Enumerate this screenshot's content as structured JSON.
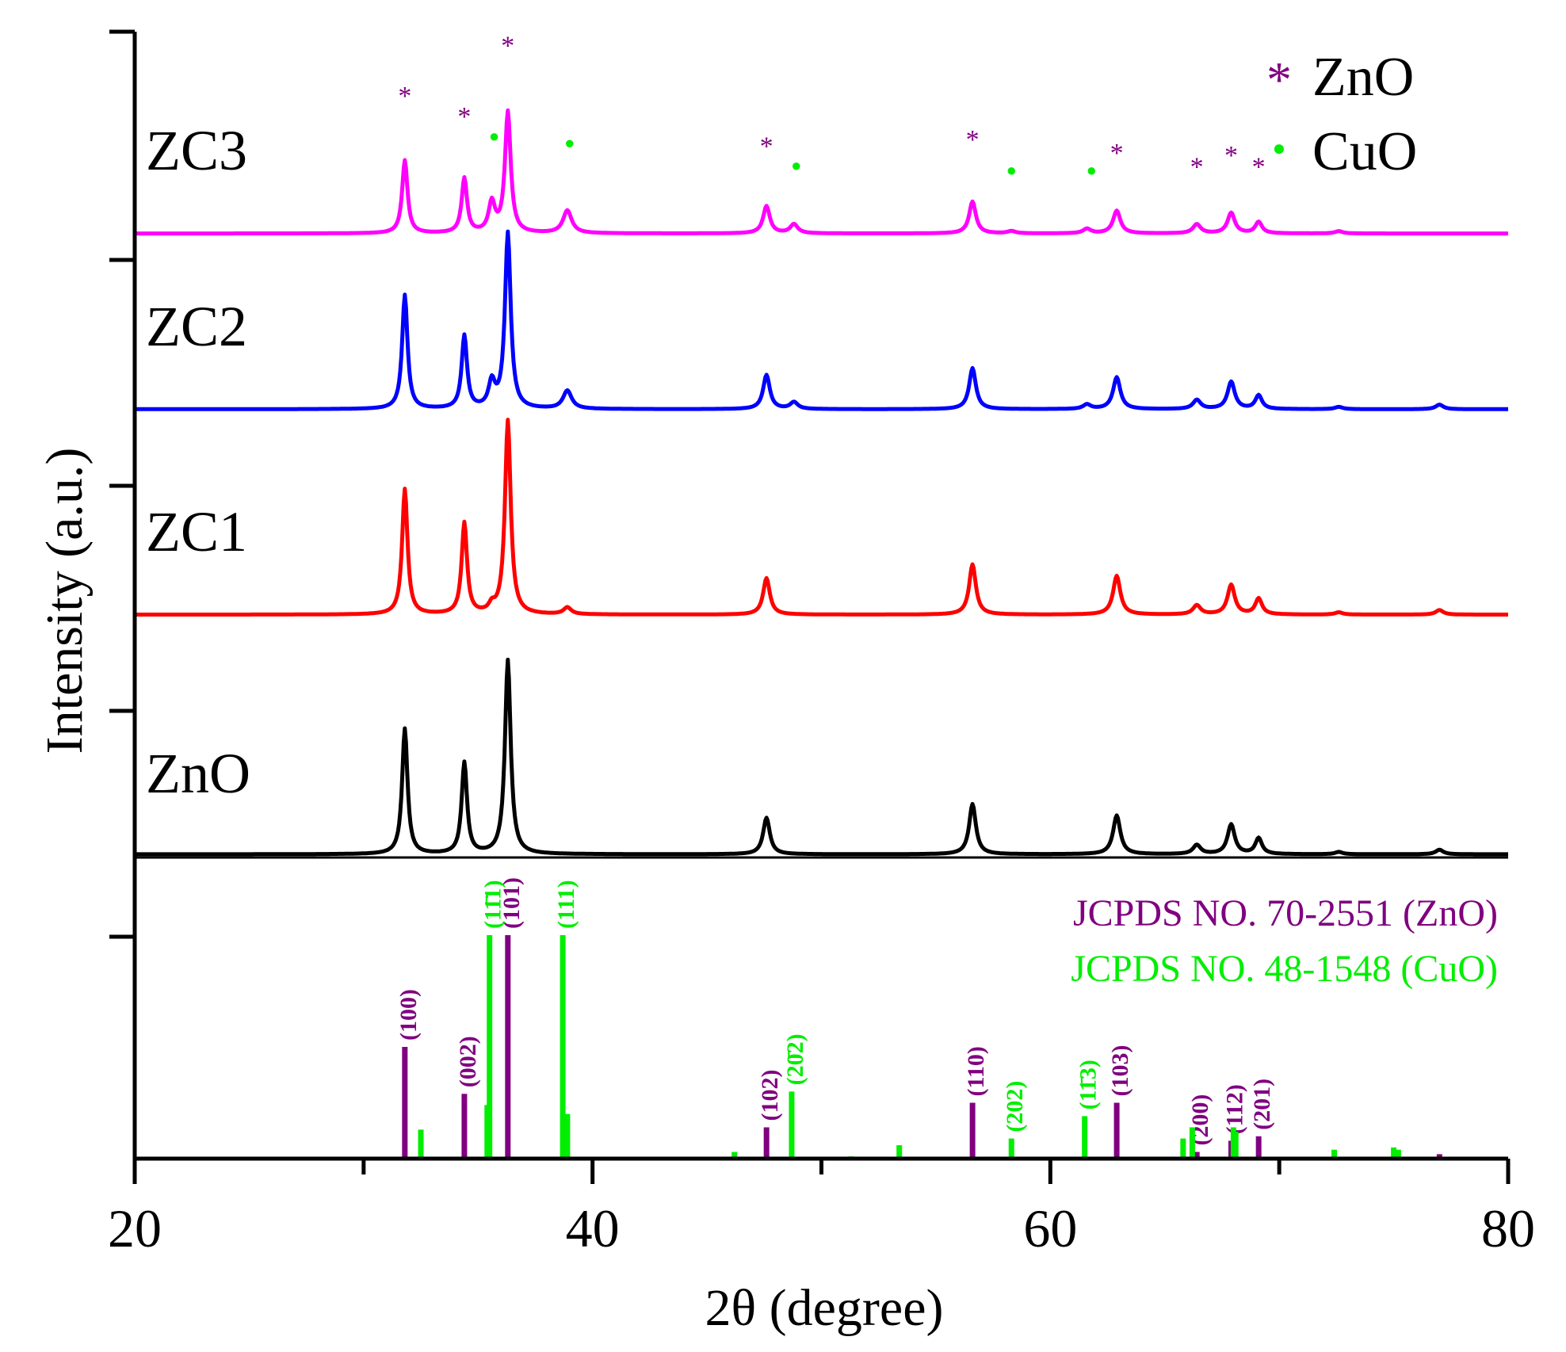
{
  "chart_data": {
    "type": "line",
    "title": "",
    "xlabel": "2θ (degree)",
    "ylabel": "Intensity (a.u.)",
    "xlim": [
      20,
      80
    ],
    "x_ticks": [
      "20",
      "40",
      "60",
      "80"
    ],
    "x_tick_values": [
      20,
      40,
      60,
      80
    ],
    "y_ticks_shown": false,
    "colors": {
      "ZnO_pattern": "#000000",
      "ZC1": "#ff0000",
      "ZC2": "#0000ff",
      "ZC3": "#ff00ff",
      "zno_marker": "#800080",
      "cuo_marker": "#00ee00"
    },
    "legend": {
      "position": "top-right",
      "entries": [
        {
          "symbol": "*",
          "label": "ZnO",
          "color": "#800080"
        },
        {
          "symbol": "●",
          "label": "CuO",
          "color": "#00ee00"
        }
      ]
    },
    "series": [
      {
        "name": "ZnO",
        "color": "#000000",
        "baseline": 0.0,
        "scale": 1.0,
        "peaks": [
          [
            31.8,
            0.55,
            0.28
          ],
          [
            34.4,
            0.4,
            0.28
          ],
          [
            36.3,
            0.85,
            0.3
          ],
          [
            47.6,
            0.16,
            0.35
          ],
          [
            56.6,
            0.22,
            0.35
          ],
          [
            62.9,
            0.17,
            0.38
          ],
          [
            66.4,
            0.04,
            0.4
          ],
          [
            67.9,
            0.13,
            0.38
          ],
          [
            69.1,
            0.07,
            0.35
          ],
          [
            72.6,
            0.01,
            0.4
          ],
          [
            77.0,
            0.02,
            0.4
          ]
        ]
      },
      {
        "name": "ZC1",
        "color": "#ff0000",
        "baseline": 1.05,
        "scale": 1.0,
        "peaks": [
          [
            31.8,
            0.55,
            0.28
          ],
          [
            34.4,
            0.4,
            0.28
          ],
          [
            35.6,
            0.03,
            0.3
          ],
          [
            36.3,
            0.85,
            0.3
          ],
          [
            38.9,
            0.03,
            0.4
          ],
          [
            47.6,
            0.16,
            0.35
          ],
          [
            56.6,
            0.22,
            0.35
          ],
          [
            62.9,
            0.17,
            0.38
          ],
          [
            66.4,
            0.04,
            0.4
          ],
          [
            67.9,
            0.13,
            0.38
          ],
          [
            69.1,
            0.07,
            0.35
          ],
          [
            72.6,
            0.01,
            0.4
          ],
          [
            77.0,
            0.02,
            0.4
          ]
        ]
      },
      {
        "name": "ZC2",
        "color": "#0000ff",
        "baseline": 1.95,
        "scale": 1.0,
        "peaks": [
          [
            31.8,
            0.5,
            0.28
          ],
          [
            34.4,
            0.32,
            0.28
          ],
          [
            35.6,
            0.11,
            0.33
          ],
          [
            36.3,
            0.77,
            0.3
          ],
          [
            38.9,
            0.08,
            0.45
          ],
          [
            47.6,
            0.15,
            0.35
          ],
          [
            48.8,
            0.03,
            0.4
          ],
          [
            56.6,
            0.18,
            0.35
          ],
          [
            61.6,
            0.02,
            0.4
          ],
          [
            62.9,
            0.14,
            0.38
          ],
          [
            66.4,
            0.04,
            0.4
          ],
          [
            67.9,
            0.12,
            0.38
          ],
          [
            69.1,
            0.06,
            0.35
          ],
          [
            72.6,
            0.01,
            0.4
          ],
          [
            77.0,
            0.02,
            0.4
          ]
        ]
      },
      {
        "name": "ZC3",
        "color": "#ff00ff",
        "baseline": 2.72,
        "scale": 1.0,
        "peaks": [
          [
            31.8,
            0.32,
            0.28
          ],
          [
            34.4,
            0.24,
            0.28
          ],
          [
            35.6,
            0.13,
            0.33
          ],
          [
            36.3,
            0.53,
            0.3
          ],
          [
            38.9,
            0.1,
            0.45
          ],
          [
            47.6,
            0.12,
            0.35
          ],
          [
            48.8,
            0.04,
            0.4
          ],
          [
            56.6,
            0.14,
            0.35
          ],
          [
            58.3,
            0.01,
            0.4
          ],
          [
            61.6,
            0.02,
            0.4
          ],
          [
            62.9,
            0.1,
            0.38
          ],
          [
            66.4,
            0.04,
            0.4
          ],
          [
            67.9,
            0.09,
            0.38
          ],
          [
            69.1,
            0.05,
            0.35
          ],
          [
            72.6,
            0.01,
            0.4
          ]
        ]
      }
    ],
    "curve_labels": [
      {
        "name": "ZC3",
        "label_y": 3.0
      },
      {
        "name": "ZC2",
        "label_y": 2.23
      },
      {
        "name": "ZC1",
        "label_y": 1.33
      },
      {
        "name": "ZnO",
        "label_y": 0.27
      }
    ],
    "peak_markers": [
      {
        "x": 31.8,
        "y": 3.34,
        "type": "zno",
        "symbol": "*"
      },
      {
        "x": 34.4,
        "y": 3.25,
        "type": "zno",
        "symbol": "*"
      },
      {
        "x": 35.7,
        "y": 3.15,
        "type": "cuo",
        "symbol": "●"
      },
      {
        "x": 36.3,
        "y": 3.56,
        "type": "zno",
        "symbol": "*"
      },
      {
        "x": 39.0,
        "y": 3.12,
        "type": "cuo",
        "symbol": "●"
      },
      {
        "x": 47.6,
        "y": 3.12,
        "type": "zno",
        "symbol": "*"
      },
      {
        "x": 48.9,
        "y": 3.02,
        "type": "cuo",
        "symbol": "●"
      },
      {
        "x": 56.6,
        "y": 3.15,
        "type": "zno",
        "symbol": "*"
      },
      {
        "x": 58.3,
        "y": 3.0,
        "type": "cuo",
        "symbol": "●"
      },
      {
        "x": 61.8,
        "y": 3.0,
        "type": "cuo",
        "symbol": "●"
      },
      {
        "x": 62.9,
        "y": 3.09,
        "type": "zno",
        "symbol": "*"
      },
      {
        "x": 66.4,
        "y": 3.03,
        "type": "zno",
        "symbol": "*"
      },
      {
        "x": 67.9,
        "y": 3.08,
        "type": "zno",
        "symbol": "*"
      },
      {
        "x": 69.1,
        "y": 3.03,
        "type": "zno",
        "symbol": "*"
      }
    ],
    "reference_patterns": [
      {
        "label": "JCPDS NO. 70-2551 (ZnO)",
        "color": "#800080",
        "lines": [
          {
            "x": 31.8,
            "h": 0.5,
            "hkl": "(100)"
          },
          {
            "x": 34.4,
            "h": 0.29,
            "hkl": "(002)"
          },
          {
            "x": 36.3,
            "h": 1.0,
            "hkl": "(101)"
          },
          {
            "x": 47.6,
            "h": 0.14,
            "hkl": "(102)"
          },
          {
            "x": 56.6,
            "h": 0.25,
            "hkl": "(110)"
          },
          {
            "x": 62.9,
            "h": 0.25,
            "hkl": "(103)"
          },
          {
            "x": 66.4,
            "h": 0.03,
            "hkl": "(200)"
          },
          {
            "x": 67.9,
            "h": 0.08,
            "hkl": "(112)"
          },
          {
            "x": 69.1,
            "h": 0.1,
            "hkl": "(201)"
          },
          {
            "x": 77.0,
            "h": 0.02,
            "hkl": ""
          }
        ]
      },
      {
        "label": "JCPDS NO. 48-1548 (CuO)",
        "color": "#00ee00",
        "lines": [
          {
            "x": 32.5,
            "h": 0.13,
            "hkl": ""
          },
          {
            "x": 35.4,
            "h": 0.24,
            "hkl": ""
          },
          {
            "x": 35.5,
            "h": 1.0,
            "hkl": "(11̄1)"
          },
          {
            "x": 38.7,
            "h": 1.0,
            "hkl": "(111)"
          },
          {
            "x": 38.9,
            "h": 0.2,
            "hkl": ""
          },
          {
            "x": 46.2,
            "h": 0.03,
            "hkl": ""
          },
          {
            "x": 48.7,
            "h": 0.3,
            "hkl": "(20̄2)"
          },
          {
            "x": 51.3,
            "h": 0.01,
            "hkl": ""
          },
          {
            "x": 53.4,
            "h": 0.06,
            "hkl": ""
          },
          {
            "x": 58.3,
            "h": 0.09,
            "hkl": "(202)"
          },
          {
            "x": 61.5,
            "h": 0.19,
            "hkl": "(11̄3)"
          },
          {
            "x": 65.8,
            "h": 0.09,
            "hkl": ""
          },
          {
            "x": 66.2,
            "h": 0.14,
            "hkl": ""
          },
          {
            "x": 68.0,
            "h": 0.14,
            "hkl": ""
          },
          {
            "x": 68.1,
            "h": 0.12,
            "hkl": ""
          },
          {
            "x": 72.4,
            "h": 0.04,
            "hkl": ""
          },
          {
            "x": 75.0,
            "h": 0.05,
            "hkl": ""
          },
          {
            "x": 75.2,
            "h": 0.04,
            "hkl": ""
          }
        ]
      }
    ]
  }
}
